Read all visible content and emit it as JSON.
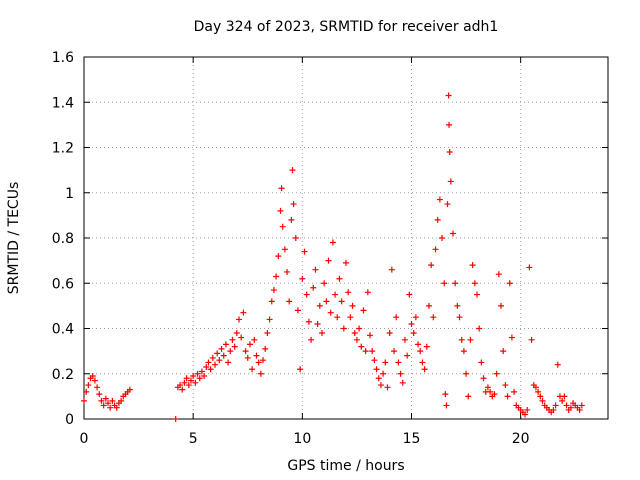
{
  "chart_data": {
    "type": "scatter",
    "title": "Day 324 of 2023, SRMTID for receiver adh1",
    "xlabel": "GPS time / hours",
    "ylabel": "SRMTID / TECUs",
    "xlim": [
      0,
      24
    ],
    "ylim": [
      0,
      1.6
    ],
    "xticks": [
      0,
      5,
      10,
      15,
      20
    ],
    "yticks": [
      0,
      0.2,
      0.4,
      0.6,
      0.8,
      1,
      1.2,
      1.4,
      1.6
    ],
    "xtick_labels": [
      "0",
      "5",
      "10",
      "15",
      "20"
    ],
    "ytick_labels": [
      "0",
      "0.2",
      "0.4",
      "0.6",
      "0.8",
      "1",
      "1.2",
      "1.4",
      "1.6"
    ],
    "grid": true,
    "marker": "+",
    "series_color": "#ff0000",
    "series": [
      {
        "name": "SRMTID",
        "points": [
          [
            0.0,
            0.08
          ],
          [
            0.1,
            0.12
          ],
          [
            0.2,
            0.15
          ],
          [
            0.3,
            0.18
          ],
          [
            0.4,
            0.19
          ],
          [
            0.5,
            0.17
          ],
          [
            0.6,
            0.14
          ],
          [
            0.7,
            0.11
          ],
          [
            0.8,
            0.08
          ],
          [
            0.9,
            0.06
          ],
          [
            1.0,
            0.09
          ],
          [
            1.1,
            0.07
          ],
          [
            1.2,
            0.05
          ],
          [
            1.3,
            0.08
          ],
          [
            1.4,
            0.06
          ],
          [
            1.5,
            0.05
          ],
          [
            1.6,
            0.07
          ],
          [
            1.7,
            0.08
          ],
          [
            1.8,
            0.1
          ],
          [
            1.9,
            0.11
          ],
          [
            2.0,
            0.12
          ],
          [
            2.1,
            0.13
          ],
          [
            4.2,
            0.0
          ],
          [
            4.3,
            0.14
          ],
          [
            4.4,
            0.15
          ],
          [
            4.5,
            0.13
          ],
          [
            4.6,
            0.16
          ],
          [
            4.7,
            0.18
          ],
          [
            4.8,
            0.15
          ],
          [
            4.9,
            0.17
          ],
          [
            5.0,
            0.19
          ],
          [
            5.1,
            0.16
          ],
          [
            5.2,
            0.2
          ],
          [
            5.3,
            0.18
          ],
          [
            5.4,
            0.21
          ],
          [
            5.5,
            0.19
          ],
          [
            5.6,
            0.23
          ],
          [
            5.7,
            0.25
          ],
          [
            5.8,
            0.22
          ],
          [
            5.9,
            0.27
          ],
          [
            6.0,
            0.24
          ],
          [
            6.1,
            0.29
          ],
          [
            6.2,
            0.26
          ],
          [
            6.3,
            0.31
          ],
          [
            6.4,
            0.28
          ],
          [
            6.5,
            0.33
          ],
          [
            6.6,
            0.25
          ],
          [
            6.7,
            0.3
          ],
          [
            6.8,
            0.35
          ],
          [
            6.9,
            0.32
          ],
          [
            7.0,
            0.38
          ],
          [
            7.1,
            0.44
          ],
          [
            7.2,
            0.36
          ],
          [
            7.3,
            0.47
          ],
          [
            7.4,
            0.3
          ],
          [
            7.5,
            0.27
          ],
          [
            7.6,
            0.33
          ],
          [
            7.7,
            0.22
          ],
          [
            7.8,
            0.35
          ],
          [
            7.9,
            0.28
          ],
          [
            8.0,
            0.25
          ],
          [
            8.1,
            0.2
          ],
          [
            8.2,
            0.26
          ],
          [
            8.3,
            0.31
          ],
          [
            8.4,
            0.38
          ],
          [
            8.5,
            0.44
          ],
          [
            8.6,
            0.52
          ],
          [
            8.7,
            0.57
          ],
          [
            8.8,
            0.63
          ],
          [
            8.9,
            0.72
          ],
          [
            9.0,
            0.92
          ],
          [
            9.05,
            1.02
          ],
          [
            9.1,
            0.85
          ],
          [
            9.2,
            0.75
          ],
          [
            9.3,
            0.65
          ],
          [
            9.4,
            0.52
          ],
          [
            9.5,
            0.88
          ],
          [
            9.55,
            1.1
          ],
          [
            9.6,
            0.95
          ],
          [
            9.7,
            0.8
          ],
          [
            9.8,
            0.48
          ],
          [
            9.9,
            0.22
          ],
          [
            10.0,
            0.62
          ],
          [
            10.1,
            0.74
          ],
          [
            10.2,
            0.55
          ],
          [
            10.3,
            0.43
          ],
          [
            10.4,
            0.35
          ],
          [
            10.5,
            0.58
          ],
          [
            10.6,
            0.66
          ],
          [
            10.7,
            0.42
          ],
          [
            10.8,
            0.5
          ],
          [
            10.9,
            0.38
          ],
          [
            11.0,
            0.6
          ],
          [
            11.1,
            0.52
          ],
          [
            11.2,
            0.7
          ],
          [
            11.3,
            0.47
          ],
          [
            11.4,
            0.78
          ],
          [
            11.5,
            0.55
          ],
          [
            11.6,
            0.45
          ],
          [
            11.7,
            0.62
          ],
          [
            11.8,
            0.52
          ],
          [
            11.9,
            0.4
          ],
          [
            12.0,
            0.69
          ],
          [
            12.1,
            0.56
          ],
          [
            12.2,
            0.45
          ],
          [
            12.3,
            0.5
          ],
          [
            12.4,
            0.38
          ],
          [
            12.5,
            0.35
          ],
          [
            12.6,
            0.4
          ],
          [
            12.7,
            0.32
          ],
          [
            12.8,
            0.48
          ],
          [
            12.9,
            0.3
          ],
          [
            13.0,
            0.56
          ],
          [
            13.1,
            0.37
          ],
          [
            13.2,
            0.3
          ],
          [
            13.3,
            0.26
          ],
          [
            13.4,
            0.22
          ],
          [
            13.5,
            0.18
          ],
          [
            13.6,
            0.15
          ],
          [
            13.7,
            0.2
          ],
          [
            13.8,
            0.25
          ],
          [
            13.9,
            0.14
          ],
          [
            14.0,
            0.38
          ],
          [
            14.1,
            0.66
          ],
          [
            14.2,
            0.3
          ],
          [
            14.3,
            0.45
          ],
          [
            14.4,
            0.25
          ],
          [
            14.5,
            0.2
          ],
          [
            14.6,
            0.16
          ],
          [
            14.7,
            0.35
          ],
          [
            14.8,
            0.28
          ],
          [
            14.9,
            0.55
          ],
          [
            15.0,
            0.42
          ],
          [
            15.1,
            0.38
          ],
          [
            15.2,
            0.45
          ],
          [
            15.3,
            0.33
          ],
          [
            15.4,
            0.3
          ],
          [
            15.5,
            0.25
          ],
          [
            15.6,
            0.22
          ],
          [
            15.7,
            0.32
          ],
          [
            15.8,
            0.5
          ],
          [
            15.9,
            0.68
          ],
          [
            16.0,
            0.45
          ],
          [
            16.1,
            0.75
          ],
          [
            16.2,
            0.88
          ],
          [
            16.3,
            0.97
          ],
          [
            16.4,
            0.8
          ],
          [
            16.5,
            0.6
          ],
          [
            16.55,
            0.11
          ],
          [
            16.6,
            0.06
          ],
          [
            16.65,
            0.95
          ],
          [
            16.7,
            1.43
          ],
          [
            16.72,
            1.3
          ],
          [
            16.75,
            1.18
          ],
          [
            16.8,
            1.05
          ],
          [
            16.9,
            0.82
          ],
          [
            17.0,
            0.6
          ],
          [
            17.1,
            0.5
          ],
          [
            17.2,
            0.45
          ],
          [
            17.3,
            0.35
          ],
          [
            17.4,
            0.3
          ],
          [
            17.5,
            0.2
          ],
          [
            17.6,
            0.1
          ],
          [
            17.7,
            0.35
          ],
          [
            17.8,
            0.68
          ],
          [
            17.9,
            0.6
          ],
          [
            18.0,
            0.55
          ],
          [
            18.1,
            0.4
          ],
          [
            18.2,
            0.25
          ],
          [
            18.3,
            0.18
          ],
          [
            18.4,
            0.12
          ],
          [
            18.5,
            0.14
          ],
          [
            18.6,
            0.12
          ],
          [
            18.7,
            0.1
          ],
          [
            18.8,
            0.11
          ],
          [
            18.9,
            0.2
          ],
          [
            19.0,
            0.64
          ],
          [
            19.1,
            0.5
          ],
          [
            19.2,
            0.3
          ],
          [
            19.3,
            0.15
          ],
          [
            19.4,
            0.1
          ],
          [
            19.5,
            0.6
          ],
          [
            19.6,
            0.36
          ],
          [
            19.7,
            0.12
          ],
          [
            19.8,
            0.06
          ],
          [
            19.9,
            0.05
          ],
          [
            20.0,
            0.04
          ],
          [
            20.1,
            0.03
          ],
          [
            20.2,
            0.02
          ],
          [
            20.3,
            0.04
          ],
          [
            20.4,
            0.67
          ],
          [
            20.5,
            0.35
          ],
          [
            20.6,
            0.15
          ],
          [
            20.7,
            0.14
          ],
          [
            20.8,
            0.12
          ],
          [
            20.9,
            0.1
          ],
          [
            21.0,
            0.08
          ],
          [
            21.1,
            0.06
          ],
          [
            21.2,
            0.05
          ],
          [
            21.3,
            0.04
          ],
          [
            21.4,
            0.03
          ],
          [
            21.5,
            0.04
          ],
          [
            21.6,
            0.06
          ],
          [
            21.7,
            0.24
          ],
          [
            21.8,
            0.1
          ],
          [
            21.9,
            0.08
          ],
          [
            22.0,
            0.1
          ],
          [
            22.1,
            0.06
          ],
          [
            22.2,
            0.04
          ],
          [
            22.3,
            0.05
          ],
          [
            22.4,
            0.07
          ],
          [
            22.5,
            0.06
          ],
          [
            22.6,
            0.05
          ],
          [
            22.7,
            0.04
          ],
          [
            22.8,
            0.06
          ]
        ]
      }
    ]
  }
}
